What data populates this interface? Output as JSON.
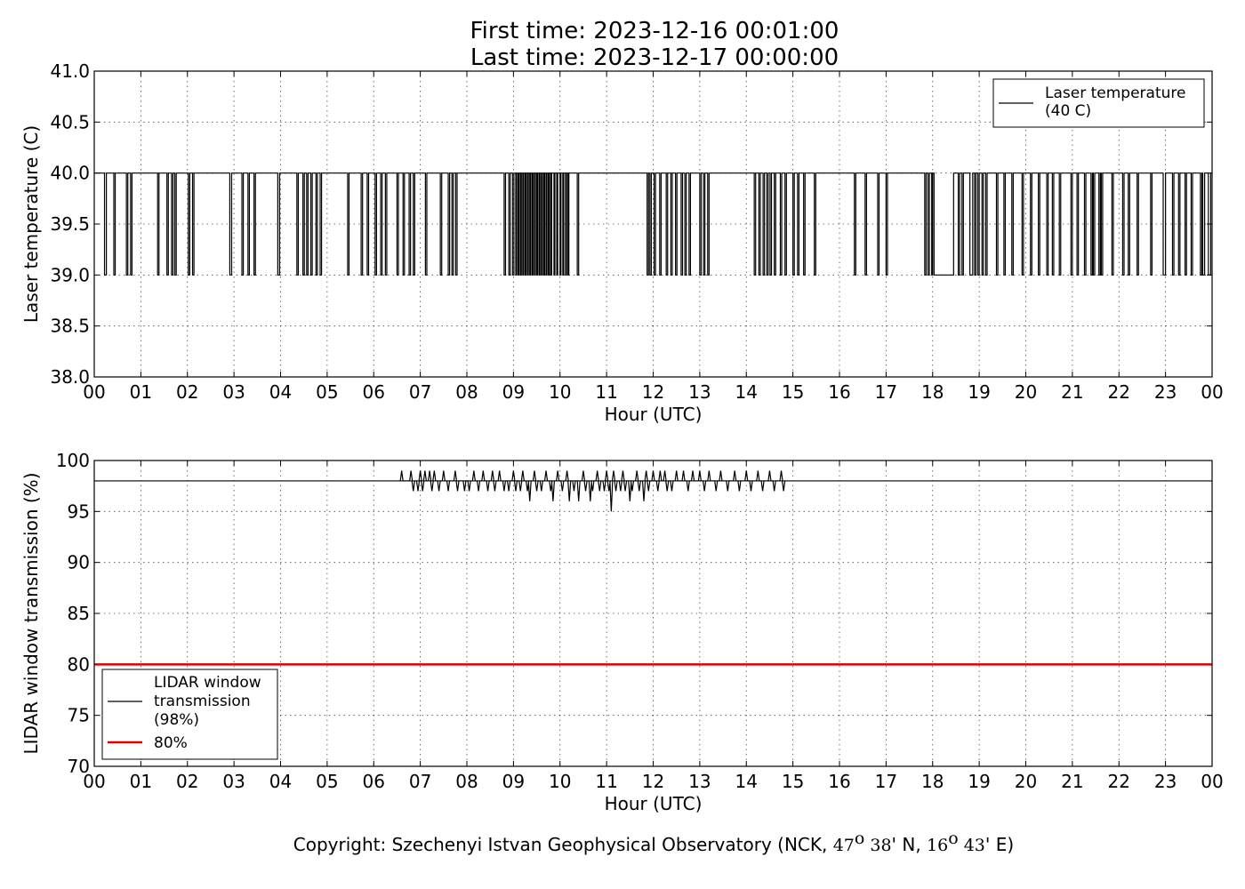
{
  "title": {
    "line1": "First time: 2023-12-16 00:01:00",
    "line2": "Last time: 2023-12-17 00:00:00"
  },
  "copyright": {
    "text": "Copyright: Szechenyi Istvan Geophysical Observatory (NCK, ",
    "lat_deg": "47",
    "lat_deg_sup": "o",
    "lat_min": "38",
    "lat_rest": "' N, ",
    "lon_deg": "16",
    "lon_deg_sup": "o",
    "lon_min": "43",
    "lon_rest": "' E)"
  },
  "chart_data": [
    {
      "type": "line",
      "xlabel": "Hour (UTC)",
      "ylabel": "Laser temperature (C)",
      "xlim": [
        0,
        24
      ],
      "ylim": [
        38.0,
        41.0
      ],
      "xticks": [
        "00",
        "01",
        "02",
        "03",
        "04",
        "05",
        "06",
        "07",
        "08",
        "09",
        "10",
        "11",
        "12",
        "13",
        "14",
        "15",
        "16",
        "17",
        "18",
        "19",
        "20",
        "21",
        "22",
        "23",
        "00"
      ],
      "yticks": [
        "38.0",
        "38.5",
        "39.0",
        "39.5",
        "40.0",
        "40.5",
        "41.0"
      ],
      "grid": true,
      "legend_position": "top-right",
      "series": [
        {
          "name": "Laser temperature\n(40 C)",
          "color": "#000000",
          "baseline": 40.0,
          "low_value": 39.0,
          "dips": [
            [
              0.22,
              0.26
            ],
            [
              0.42,
              0.45
            ],
            [
              0.69,
              0.72
            ],
            [
              0.78,
              0.81
            ],
            [
              1.36,
              1.39
            ],
            [
              1.56,
              1.59
            ],
            [
              1.66,
              1.69
            ],
            [
              1.73,
              1.76
            ],
            [
              2.02,
              2.05
            ],
            [
              2.11,
              2.14
            ],
            [
              2.91,
              2.95
            ],
            [
              3.17,
              3.2
            ],
            [
              3.3,
              3.33
            ],
            [
              3.43,
              3.46
            ],
            [
              3.94,
              3.98
            ],
            [
              4.35,
              4.38
            ],
            [
              4.48,
              4.51
            ],
            [
              4.56,
              4.59
            ],
            [
              4.65,
              4.68
            ],
            [
              4.76,
              4.79
            ],
            [
              4.85,
              4.88
            ],
            [
              5.44,
              5.47
            ],
            [
              5.73,
              5.76
            ],
            [
              5.86,
              5.89
            ],
            [
              6.03,
              6.06
            ],
            [
              6.15,
              6.18
            ],
            [
              6.25,
              6.28
            ],
            [
              6.5,
              6.53
            ],
            [
              6.63,
              6.66
            ],
            [
              6.76,
              6.79
            ],
            [
              6.85,
              6.88
            ],
            [
              7.11,
              7.14
            ],
            [
              7.43,
              7.46
            ],
            [
              7.6,
              7.63
            ],
            [
              7.68,
              7.71
            ],
            [
              7.76,
              7.79
            ],
            [
              8.8,
              8.83
            ],
            [
              8.9,
              8.93
            ],
            [
              8.98,
              9.01
            ],
            [
              9.05,
              9.07
            ],
            [
              9.1,
              9.12
            ],
            [
              9.15,
              9.17
            ],
            [
              9.2,
              9.22
            ],
            [
              9.25,
              9.27
            ],
            [
              9.3,
              9.32
            ],
            [
              9.35,
              9.37
            ],
            [
              9.4,
              9.42
            ],
            [
              9.45,
              9.47
            ],
            [
              9.5,
              9.52
            ],
            [
              9.55,
              9.57
            ],
            [
              9.6,
              9.62
            ],
            [
              9.65,
              9.67
            ],
            [
              9.7,
              9.72
            ],
            [
              9.75,
              9.77
            ],
            [
              9.8,
              9.82
            ],
            [
              9.87,
              9.89
            ],
            [
              9.93,
              9.95
            ],
            [
              10.0,
              10.02
            ],
            [
              10.06,
              10.08
            ],
            [
              10.12,
              10.14
            ],
            [
              10.17,
              10.19
            ],
            [
              10.37,
              10.4
            ],
            [
              11.87,
              11.9
            ],
            [
              11.93,
              11.96
            ],
            [
              12.02,
              12.05
            ],
            [
              12.14,
              12.17
            ],
            [
              12.28,
              12.31
            ],
            [
              12.38,
              12.41
            ],
            [
              12.48,
              12.51
            ],
            [
              12.6,
              12.63
            ],
            [
              12.68,
              12.71
            ],
            [
              12.77,
              12.8
            ],
            [
              13.0,
              13.03
            ],
            [
              13.08,
              13.11
            ],
            [
              13.17,
              13.2
            ],
            [
              14.17,
              14.2
            ],
            [
              14.27,
              14.3
            ],
            [
              14.36,
              14.39
            ],
            [
              14.44,
              14.47
            ],
            [
              14.51,
              14.54
            ],
            [
              14.6,
              14.63
            ],
            [
              14.73,
              14.76
            ],
            [
              14.83,
              14.86
            ],
            [
              15.0,
              15.03
            ],
            [
              15.1,
              15.13
            ],
            [
              15.23,
              15.26
            ],
            [
              15.46,
              15.49
            ],
            [
              16.32,
              16.35
            ],
            [
              16.55,
              16.58
            ],
            [
              16.82,
              16.85
            ],
            [
              17.0,
              17.03
            ],
            [
              17.83,
              17.86
            ],
            [
              17.9,
              17.93
            ],
            [
              17.98,
              18.0
            ],
            [
              18.03,
              18.45
            ],
            [
              18.55,
              18.58
            ],
            [
              18.63,
              18.66
            ],
            [
              18.8,
              18.86
            ],
            [
              18.9,
              18.93
            ],
            [
              18.97,
              19.0
            ],
            [
              19.06,
              19.09
            ],
            [
              19.14,
              19.17
            ],
            [
              19.37,
              19.4
            ],
            [
              19.53,
              19.56
            ],
            [
              19.7,
              19.73
            ],
            [
              19.92,
              19.95
            ],
            [
              20.1,
              20.13
            ],
            [
              20.27,
              20.3
            ],
            [
              20.45,
              20.48
            ],
            [
              20.57,
              20.6
            ],
            [
              20.72,
              20.75
            ],
            [
              20.97,
              21.0
            ],
            [
              21.1,
              21.13
            ],
            [
              21.26,
              21.29
            ],
            [
              21.4,
              21.43
            ],
            [
              21.45,
              21.48
            ],
            [
              21.57,
              21.6
            ],
            [
              21.62,
              21.65
            ],
            [
              21.85,
              21.88
            ],
            [
              22.08,
              22.11
            ],
            [
              22.2,
              22.23
            ],
            [
              22.39,
              22.42
            ],
            [
              22.68,
              22.71
            ],
            [
              22.95,
              23.0
            ],
            [
              23.15,
              23.18
            ],
            [
              23.28,
              23.31
            ],
            [
              23.42,
              23.45
            ],
            [
              23.55,
              23.58
            ],
            [
              23.75,
              23.78
            ],
            [
              23.8,
              23.84
            ],
            [
              23.92,
              23.97
            ]
          ]
        }
      ]
    },
    {
      "type": "line",
      "xlabel": "Hour (UTC)",
      "ylabel": "LIDAR window transmission (%)",
      "xlim": [
        0,
        24
      ],
      "ylim": [
        70,
        100
      ],
      "xticks": [
        "00",
        "01",
        "02",
        "03",
        "04",
        "05",
        "06",
        "07",
        "08",
        "09",
        "10",
        "11",
        "12",
        "13",
        "14",
        "15",
        "16",
        "17",
        "18",
        "19",
        "20",
        "21",
        "22",
        "23",
        "00"
      ],
      "yticks": [
        "70",
        "75",
        "80",
        "85",
        "90",
        "95",
        "100"
      ],
      "grid": true,
      "legend_position": "bottom-left",
      "series": [
        {
          "name": "LIDAR window\ntransmission\n(98%)",
          "color": "#000000",
          "baseline": 98,
          "active_range": [
            6.55,
            14.85
          ],
          "spikes": [
            [
              6.6,
              99
            ],
            [
              6.8,
              99
            ],
            [
              6.85,
              97
            ],
            [
              6.95,
              97
            ],
            [
              7.0,
              99
            ],
            [
              7.05,
              97
            ],
            [
              7.1,
              99
            ],
            [
              7.2,
              99
            ],
            [
              7.25,
              97
            ],
            [
              7.3,
              99
            ],
            [
              7.4,
              97
            ],
            [
              7.5,
              99
            ],
            [
              7.6,
              97
            ],
            [
              7.75,
              99
            ],
            [
              7.8,
              97
            ],
            [
              7.95,
              97
            ],
            [
              8.05,
              97
            ],
            [
              8.15,
              99
            ],
            [
              8.25,
              97
            ],
            [
              8.35,
              99
            ],
            [
              8.45,
              97
            ],
            [
              8.55,
              99
            ],
            [
              8.6,
              97
            ],
            [
              8.7,
              99
            ],
            [
              8.8,
              97
            ],
            [
              8.9,
              97
            ],
            [
              9.0,
              99
            ],
            [
              9.05,
              97
            ],
            [
              9.15,
              97
            ],
            [
              9.2,
              99
            ],
            [
              9.3,
              97
            ],
            [
              9.35,
              96
            ],
            [
              9.45,
              99
            ],
            [
              9.5,
              97
            ],
            [
              9.6,
              97
            ],
            [
              9.7,
              99
            ],
            [
              9.8,
              97
            ],
            [
              9.85,
              96
            ],
            [
              9.95,
              99
            ],
            [
              10.05,
              97
            ],
            [
              10.15,
              99
            ],
            [
              10.2,
              96
            ],
            [
              10.3,
              97
            ],
            [
              10.4,
              96
            ],
            [
              10.5,
              99
            ],
            [
              10.55,
              97
            ],
            [
              10.65,
              96
            ],
            [
              10.7,
              97
            ],
            [
              10.8,
              99
            ],
            [
              10.85,
              97
            ],
            [
              10.95,
              97
            ],
            [
              11.0,
              99
            ],
            [
              11.05,
              97
            ],
            [
              11.1,
              95
            ],
            [
              11.15,
              99
            ],
            [
              11.2,
              97
            ],
            [
              11.3,
              97
            ],
            [
              11.35,
              99
            ],
            [
              11.4,
              97
            ],
            [
              11.5,
              96
            ],
            [
              11.55,
              97
            ],
            [
              11.65,
              99
            ],
            [
              11.7,
              97
            ],
            [
              11.8,
              96
            ],
            [
              11.85,
              99
            ],
            [
              11.9,
              97
            ],
            [
              12.0,
              99
            ],
            [
              12.1,
              97
            ],
            [
              12.15,
              99
            ],
            [
              12.25,
              99
            ],
            [
              12.3,
              97
            ],
            [
              12.4,
              97
            ],
            [
              12.5,
              99
            ],
            [
              12.65,
              99
            ],
            [
              12.75,
              97
            ],
            [
              12.85,
              99
            ],
            [
              13.0,
              99
            ],
            [
              13.1,
              97
            ],
            [
              13.2,
              99
            ],
            [
              13.35,
              97
            ],
            [
              13.45,
              99
            ],
            [
              13.6,
              97
            ],
            [
              13.75,
              99
            ],
            [
              13.85,
              97
            ],
            [
              14.0,
              99
            ],
            [
              14.1,
              97
            ],
            [
              14.25,
              99
            ],
            [
              14.35,
              97
            ],
            [
              14.5,
              99
            ],
            [
              14.6,
              97
            ],
            [
              14.75,
              99
            ],
            [
              14.8,
              97
            ]
          ]
        },
        {
          "name": "80%",
          "color": "#dd0000",
          "value": 80
        }
      ]
    }
  ]
}
